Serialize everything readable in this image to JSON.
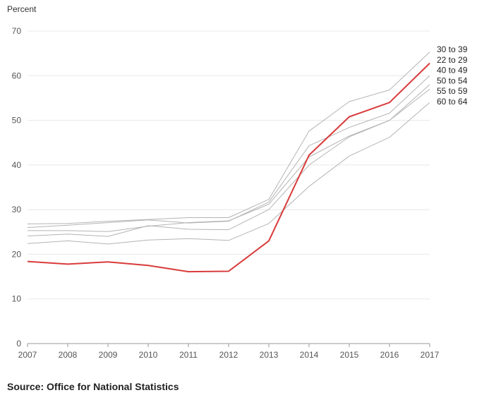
{
  "source": "Source: Office for National Statistics",
  "colors": {
    "highlight": "#d93b3b",
    "other": "#b4b4b4",
    "grid": "#e8e8e8",
    "axis": "#999999"
  },
  "chart_data": {
    "type": "line",
    "title": "",
    "xlabel": "",
    "ylabel": "Percent",
    "ylim": [
      0,
      70
    ],
    "yticks": [
      0,
      10,
      20,
      30,
      40,
      50,
      60,
      70
    ],
    "x": [
      "2007",
      "2008",
      "2009",
      "2010",
      "2011",
      "2012",
      "2013",
      "2014",
      "2015",
      "2016",
      "2017"
    ],
    "highlight_series": "22 to 29",
    "series": [
      {
        "name": "30 to 39",
        "values": [
          26.8,
          26.9,
          27.4,
          27.8,
          28.2,
          28.2,
          32.3,
          47.6,
          54.2,
          56.8,
          65.3
        ]
      },
      {
        "name": "22 to 29",
        "values": [
          18.4,
          17.8,
          18.3,
          17.5,
          16.1,
          16.2,
          23.0,
          42.2,
          50.8,
          54.0,
          62.8
        ]
      },
      {
        "name": "40 to 49",
        "values": [
          26.0,
          26.5,
          27.1,
          27.7,
          27.0,
          27.4,
          31.7,
          44.3,
          48.4,
          51.6,
          60.0
        ]
      },
      {
        "name": "50 to 54",
        "values": [
          25.3,
          25.3,
          25.1,
          26.3,
          27.1,
          27.5,
          31.2,
          41.8,
          46.5,
          50.0,
          58.0
        ]
      },
      {
        "name": "55 to 59",
        "values": [
          24.1,
          24.5,
          24.0,
          26.4,
          25.6,
          25.5,
          30.0,
          40.0,
          46.3,
          50.0,
          57.0
        ]
      },
      {
        "name": "60 to 64",
        "values": [
          22.4,
          23.0,
          22.3,
          23.2,
          23.5,
          23.1,
          26.9,
          35.2,
          42.0,
          46.2,
          54.0
        ]
      }
    ]
  }
}
